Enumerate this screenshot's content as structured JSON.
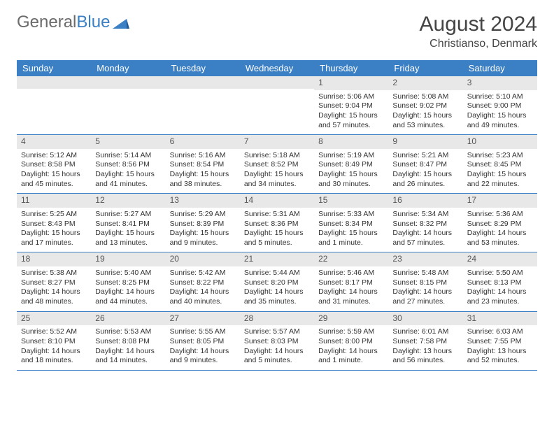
{
  "logo": {
    "word1": "General",
    "word2": "Blue"
  },
  "title": "August 2024",
  "location": "Christianso, Denmark",
  "colors": {
    "header_bg": "#3b7fc4",
    "header_text": "#ffffff",
    "daynum_bg": "#e8e8e8",
    "border": "#3b7fc4",
    "logo_gray": "#6b6b6b",
    "logo_blue": "#3b7fc4"
  },
  "weekdays": [
    "Sunday",
    "Monday",
    "Tuesday",
    "Wednesday",
    "Thursday",
    "Friday",
    "Saturday"
  ],
  "weeks": [
    [
      null,
      null,
      null,
      null,
      {
        "num": "1",
        "sunrise": "Sunrise: 5:06 AM",
        "sunset": "Sunset: 9:04 PM",
        "daylight": "Daylight: 15 hours and 57 minutes."
      },
      {
        "num": "2",
        "sunrise": "Sunrise: 5:08 AM",
        "sunset": "Sunset: 9:02 PM",
        "daylight": "Daylight: 15 hours and 53 minutes."
      },
      {
        "num": "3",
        "sunrise": "Sunrise: 5:10 AM",
        "sunset": "Sunset: 9:00 PM",
        "daylight": "Daylight: 15 hours and 49 minutes."
      }
    ],
    [
      {
        "num": "4",
        "sunrise": "Sunrise: 5:12 AM",
        "sunset": "Sunset: 8:58 PM",
        "daylight": "Daylight: 15 hours and 45 minutes."
      },
      {
        "num": "5",
        "sunrise": "Sunrise: 5:14 AM",
        "sunset": "Sunset: 8:56 PM",
        "daylight": "Daylight: 15 hours and 41 minutes."
      },
      {
        "num": "6",
        "sunrise": "Sunrise: 5:16 AM",
        "sunset": "Sunset: 8:54 PM",
        "daylight": "Daylight: 15 hours and 38 minutes."
      },
      {
        "num": "7",
        "sunrise": "Sunrise: 5:18 AM",
        "sunset": "Sunset: 8:52 PM",
        "daylight": "Daylight: 15 hours and 34 minutes."
      },
      {
        "num": "8",
        "sunrise": "Sunrise: 5:19 AM",
        "sunset": "Sunset: 8:49 PM",
        "daylight": "Daylight: 15 hours and 30 minutes."
      },
      {
        "num": "9",
        "sunrise": "Sunrise: 5:21 AM",
        "sunset": "Sunset: 8:47 PM",
        "daylight": "Daylight: 15 hours and 26 minutes."
      },
      {
        "num": "10",
        "sunrise": "Sunrise: 5:23 AM",
        "sunset": "Sunset: 8:45 PM",
        "daylight": "Daylight: 15 hours and 22 minutes."
      }
    ],
    [
      {
        "num": "11",
        "sunrise": "Sunrise: 5:25 AM",
        "sunset": "Sunset: 8:43 PM",
        "daylight": "Daylight: 15 hours and 17 minutes."
      },
      {
        "num": "12",
        "sunrise": "Sunrise: 5:27 AM",
        "sunset": "Sunset: 8:41 PM",
        "daylight": "Daylight: 15 hours and 13 minutes."
      },
      {
        "num": "13",
        "sunrise": "Sunrise: 5:29 AM",
        "sunset": "Sunset: 8:39 PM",
        "daylight": "Daylight: 15 hours and 9 minutes."
      },
      {
        "num": "14",
        "sunrise": "Sunrise: 5:31 AM",
        "sunset": "Sunset: 8:36 PM",
        "daylight": "Daylight: 15 hours and 5 minutes."
      },
      {
        "num": "15",
        "sunrise": "Sunrise: 5:33 AM",
        "sunset": "Sunset: 8:34 PM",
        "daylight": "Daylight: 15 hours and 1 minute."
      },
      {
        "num": "16",
        "sunrise": "Sunrise: 5:34 AM",
        "sunset": "Sunset: 8:32 PM",
        "daylight": "Daylight: 14 hours and 57 minutes."
      },
      {
        "num": "17",
        "sunrise": "Sunrise: 5:36 AM",
        "sunset": "Sunset: 8:29 PM",
        "daylight": "Daylight: 14 hours and 53 minutes."
      }
    ],
    [
      {
        "num": "18",
        "sunrise": "Sunrise: 5:38 AM",
        "sunset": "Sunset: 8:27 PM",
        "daylight": "Daylight: 14 hours and 48 minutes."
      },
      {
        "num": "19",
        "sunrise": "Sunrise: 5:40 AM",
        "sunset": "Sunset: 8:25 PM",
        "daylight": "Daylight: 14 hours and 44 minutes."
      },
      {
        "num": "20",
        "sunrise": "Sunrise: 5:42 AM",
        "sunset": "Sunset: 8:22 PM",
        "daylight": "Daylight: 14 hours and 40 minutes."
      },
      {
        "num": "21",
        "sunrise": "Sunrise: 5:44 AM",
        "sunset": "Sunset: 8:20 PM",
        "daylight": "Daylight: 14 hours and 35 minutes."
      },
      {
        "num": "22",
        "sunrise": "Sunrise: 5:46 AM",
        "sunset": "Sunset: 8:17 PM",
        "daylight": "Daylight: 14 hours and 31 minutes."
      },
      {
        "num": "23",
        "sunrise": "Sunrise: 5:48 AM",
        "sunset": "Sunset: 8:15 PM",
        "daylight": "Daylight: 14 hours and 27 minutes."
      },
      {
        "num": "24",
        "sunrise": "Sunrise: 5:50 AM",
        "sunset": "Sunset: 8:13 PM",
        "daylight": "Daylight: 14 hours and 23 minutes."
      }
    ],
    [
      {
        "num": "25",
        "sunrise": "Sunrise: 5:52 AM",
        "sunset": "Sunset: 8:10 PM",
        "daylight": "Daylight: 14 hours and 18 minutes."
      },
      {
        "num": "26",
        "sunrise": "Sunrise: 5:53 AM",
        "sunset": "Sunset: 8:08 PM",
        "daylight": "Daylight: 14 hours and 14 minutes."
      },
      {
        "num": "27",
        "sunrise": "Sunrise: 5:55 AM",
        "sunset": "Sunset: 8:05 PM",
        "daylight": "Daylight: 14 hours and 9 minutes."
      },
      {
        "num": "28",
        "sunrise": "Sunrise: 5:57 AM",
        "sunset": "Sunset: 8:03 PM",
        "daylight": "Daylight: 14 hours and 5 minutes."
      },
      {
        "num": "29",
        "sunrise": "Sunrise: 5:59 AM",
        "sunset": "Sunset: 8:00 PM",
        "daylight": "Daylight: 14 hours and 1 minute."
      },
      {
        "num": "30",
        "sunrise": "Sunrise: 6:01 AM",
        "sunset": "Sunset: 7:58 PM",
        "daylight": "Daylight: 13 hours and 56 minutes."
      },
      {
        "num": "31",
        "sunrise": "Sunrise: 6:03 AM",
        "sunset": "Sunset: 7:55 PM",
        "daylight": "Daylight: 13 hours and 52 minutes."
      }
    ]
  ]
}
